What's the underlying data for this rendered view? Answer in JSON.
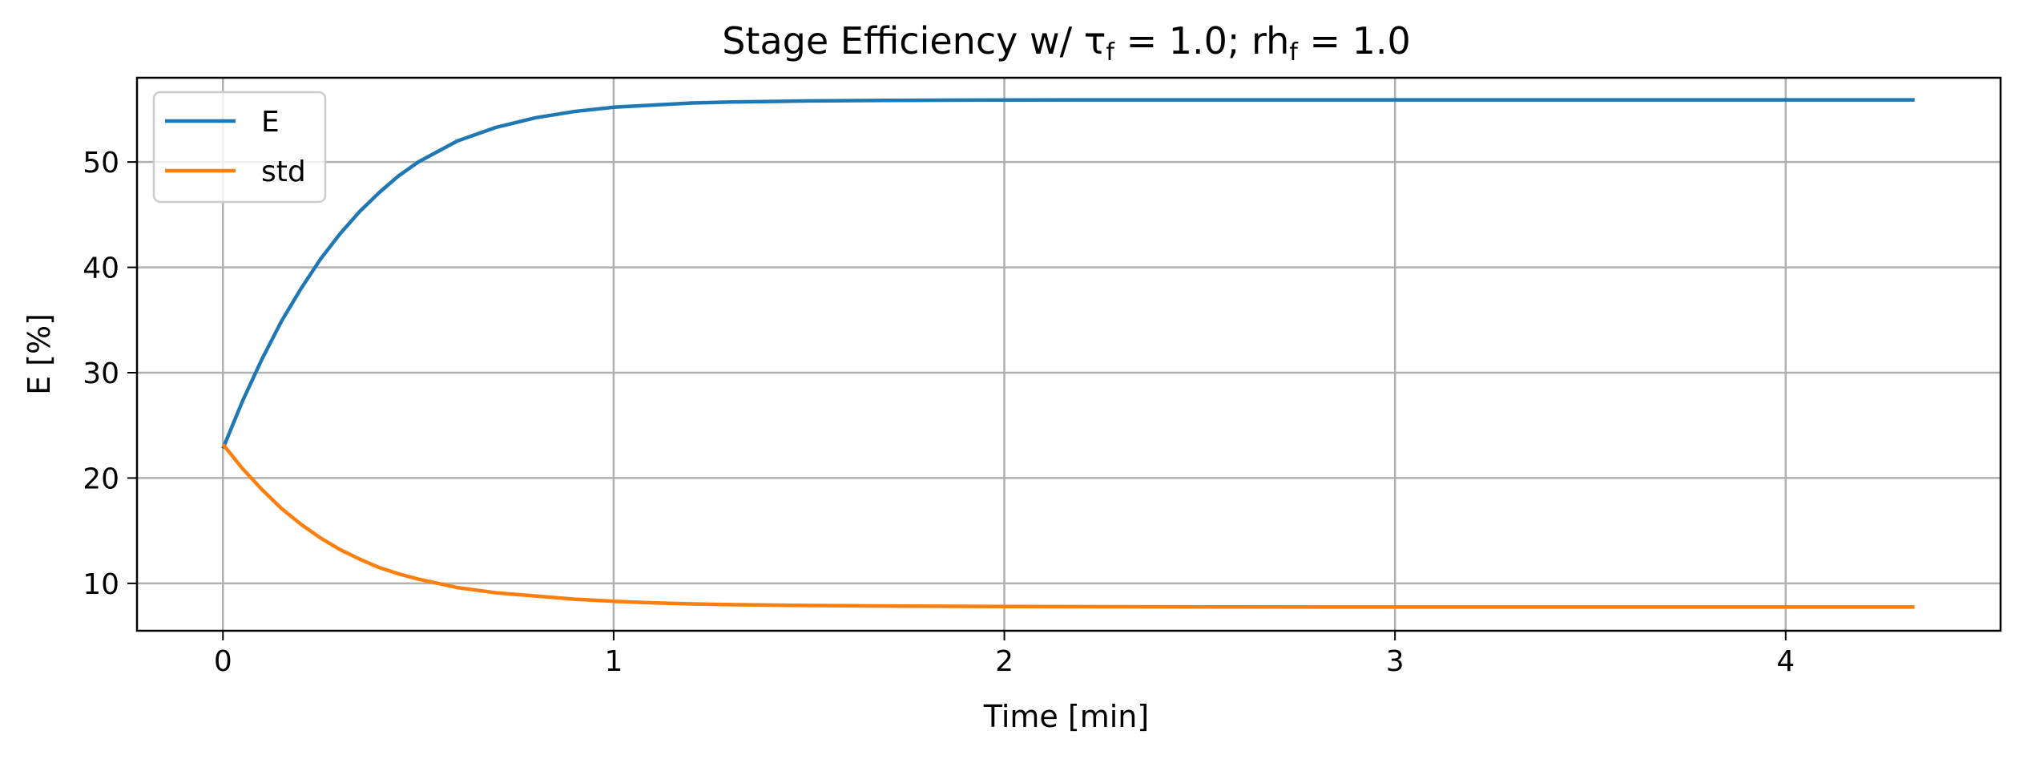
{
  "chart_data": {
    "type": "line",
    "title": "Stage Efficiency w/ τᶠ = 1.0; rhᶠ = 1.0",
    "title_parts": {
      "prefix": "Stage Efficiency w/ τ",
      "sub1": "f",
      "middle": " = 1.0; rh",
      "sub2": "f",
      "suffix": " = 1.0"
    },
    "xlabel": "Time [min]",
    "ylabel": "E [%]",
    "xlim": [
      -0.22,
      4.55
    ],
    "ylim": [
      5.5,
      58.0
    ],
    "xticks": [
      0,
      1,
      2,
      3,
      4
    ],
    "yticks": [
      10,
      20,
      30,
      40,
      50
    ],
    "grid": true,
    "legend_position": "top-left",
    "series": [
      {
        "name": "E",
        "color": "#1f77b4",
        "x": [
          0,
          0.05,
          0.1,
          0.15,
          0.2,
          0.25,
          0.3,
          0.35,
          0.4,
          0.45,
          0.5,
          0.6,
          0.7,
          0.8,
          0.9,
          1.0,
          1.1,
          1.2,
          1.3,
          1.4,
          1.5,
          1.7,
          1.9,
          2.2,
          2.5,
          3.0,
          3.5,
          4.0,
          4.33
        ],
        "y": [
          22.8,
          27.3,
          31.3,
          34.9,
          38.0,
          40.8,
          43.2,
          45.3,
          47.1,
          48.7,
          50.0,
          52.0,
          53.3,
          54.2,
          54.8,
          55.2,
          55.4,
          55.6,
          55.7,
          55.75,
          55.8,
          55.85,
          55.88,
          55.9,
          55.9,
          55.9,
          55.9,
          55.9,
          55.9
        ]
      },
      {
        "name": "std",
        "color": "#ff7f0e",
        "x": [
          0,
          0.05,
          0.1,
          0.15,
          0.2,
          0.25,
          0.3,
          0.35,
          0.4,
          0.45,
          0.5,
          0.6,
          0.7,
          0.8,
          0.9,
          1.0,
          1.1,
          1.2,
          1.3,
          1.5,
          1.7,
          2.0,
          2.3,
          2.6,
          3.0,
          3.5,
          4.0,
          4.33
        ],
        "y": [
          23.2,
          20.9,
          18.9,
          17.1,
          15.6,
          14.3,
          13.2,
          12.3,
          11.5,
          10.9,
          10.4,
          9.6,
          9.1,
          8.8,
          8.5,
          8.3,
          8.15,
          8.05,
          7.98,
          7.9,
          7.85,
          7.8,
          7.78,
          7.76,
          7.75,
          7.75,
          7.75,
          7.75
        ]
      }
    ]
  }
}
